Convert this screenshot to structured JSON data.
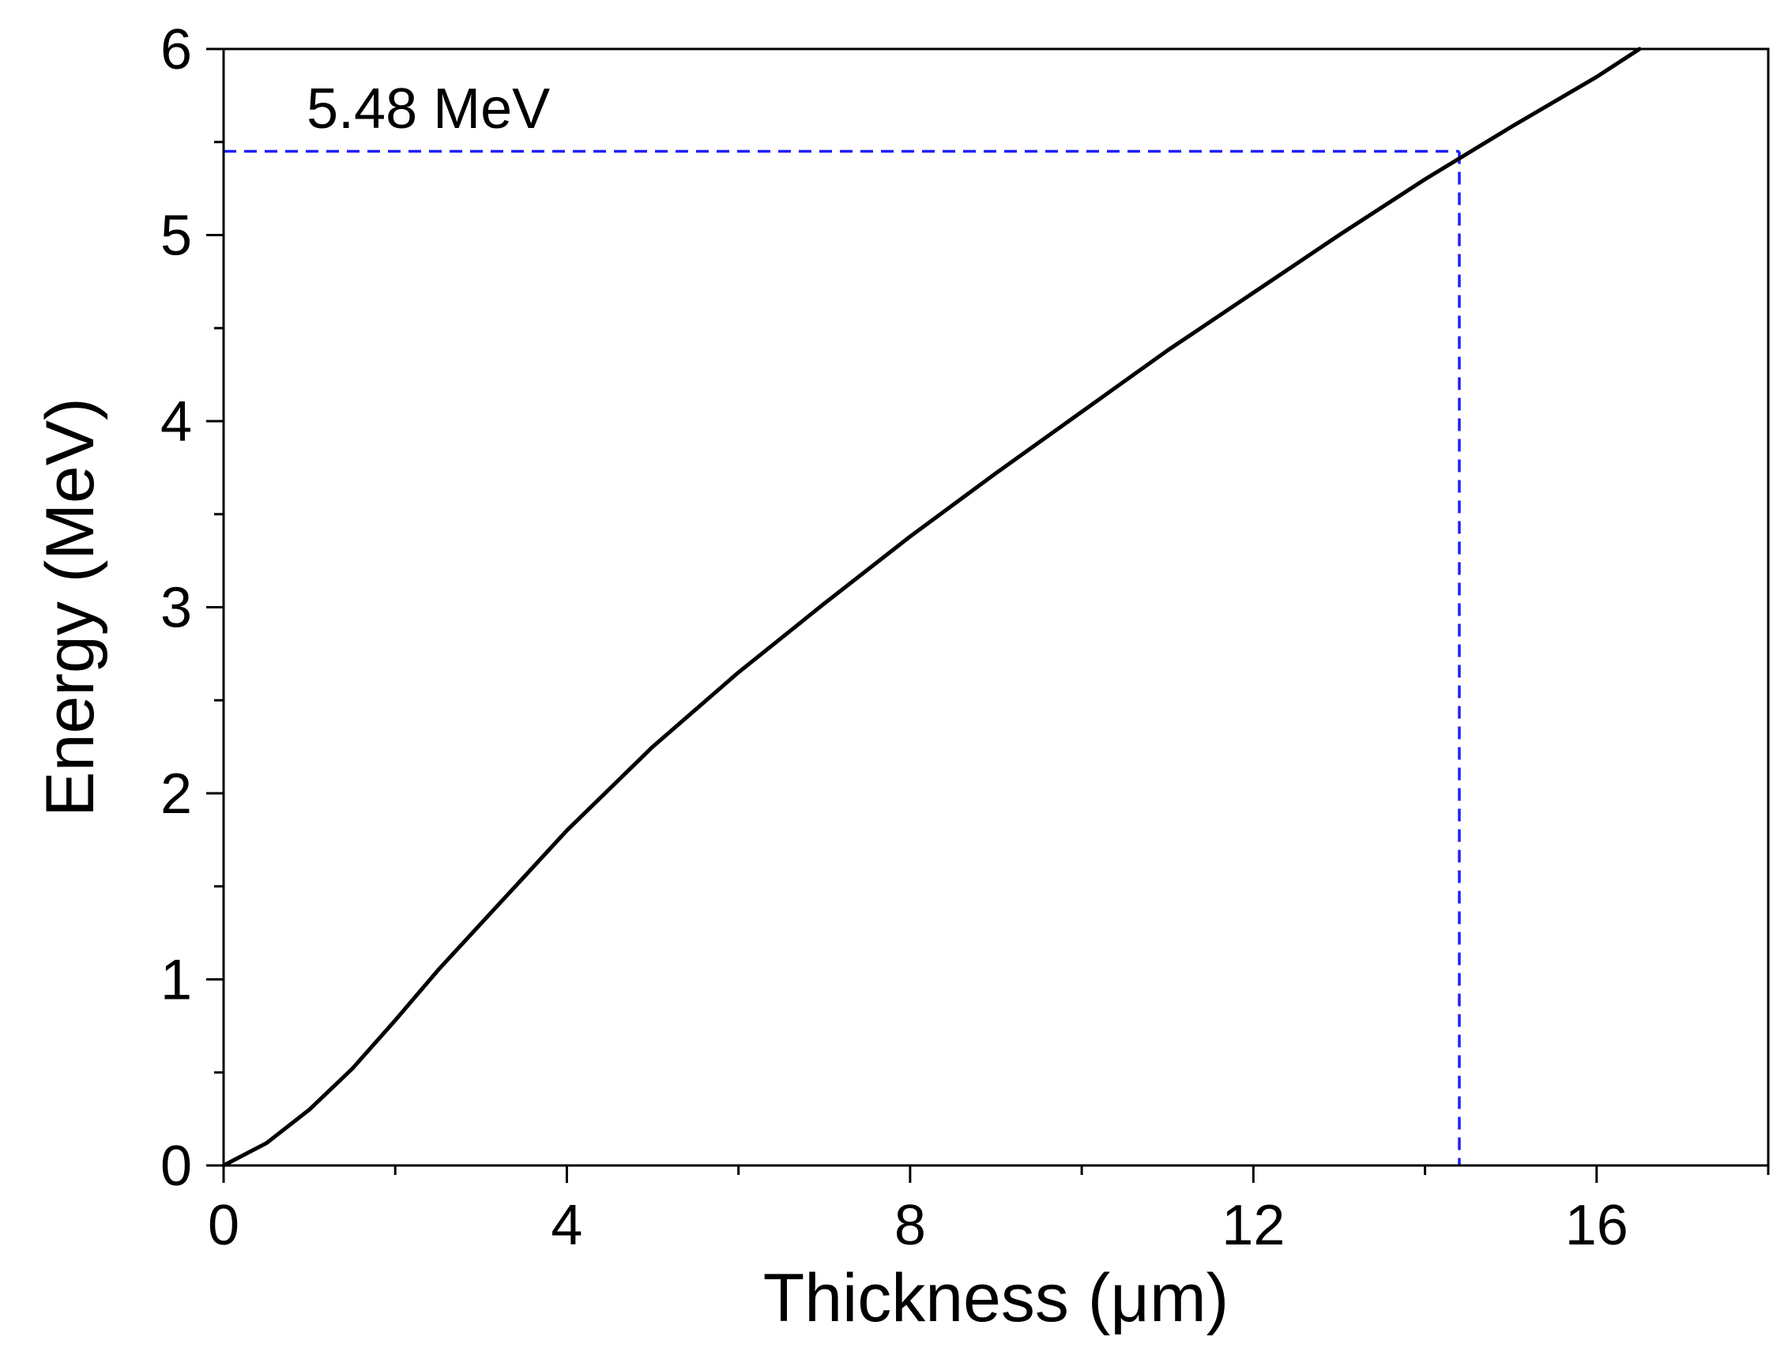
{
  "chart_data": {
    "type": "line",
    "xlabel": "Thickness (μm)",
    "ylabel": "Energy (MeV)",
    "xlim": [
      0,
      18
    ],
    "ylim": [
      0,
      6
    ],
    "xticks": [
      0,
      4,
      8,
      12,
      16
    ],
    "yticks": [
      0,
      1,
      2,
      3,
      4,
      5,
      6
    ],
    "x_minor_step": 2,
    "y_minor_step": 0.5,
    "grid": false,
    "annotation": "5.48 MeV",
    "series": [
      {
        "color": "#000000",
        "x": [
          0,
          0.5,
          1,
          1.5,
          2,
          2.5,
          3,
          3.5,
          4,
          5,
          6,
          7,
          8,
          9,
          10,
          11,
          12,
          13,
          14,
          15,
          16,
          16.5
        ],
        "y": [
          0,
          0.12,
          0.3,
          0.52,
          0.78,
          1.05,
          1.3,
          1.55,
          1.8,
          2.25,
          2.65,
          3.02,
          3.38,
          3.72,
          4.05,
          4.38,
          4.69,
          5.0,
          5.3,
          5.58,
          5.85,
          6.0
        ]
      }
    ],
    "reference_lines": {
      "color": "#1f1fff",
      "x": 14.4,
      "y": 5.45
    }
  }
}
